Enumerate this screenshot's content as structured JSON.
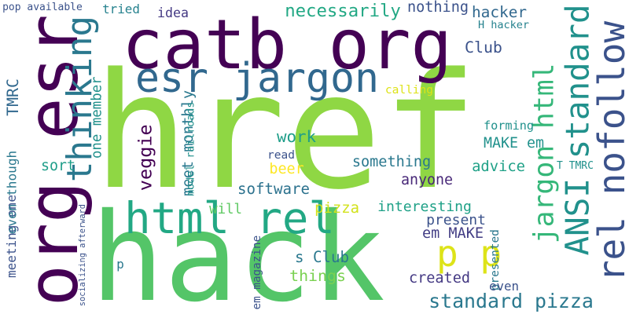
{
  "words": [
    {
      "text": "href",
      "color": "#8fd744"
    },
    {
      "text": "hack",
      "color": "#54c568"
    },
    {
      "text": "catb org",
      "color": "#440154"
    },
    {
      "text": "org esr",
      "color": "#440154"
    },
    {
      "text": "rel nofollow",
      "color": "#3b528b"
    },
    {
      "text": "esr jargon",
      "color": "#31688e"
    },
    {
      "text": "jargon html",
      "color": "#35b779"
    },
    {
      "text": "ANSI standard",
      "color": "#21918c"
    },
    {
      "text": "thinking",
      "color": "#2a788e"
    },
    {
      "text": "html rel",
      "color": "#22a884"
    },
    {
      "text": "p p",
      "color": "#dde318"
    },
    {
      "text": "standard pizza",
      "color": "#2a788e"
    },
    {
      "text": "things",
      "color": "#7ad151"
    },
    {
      "text": "presented",
      "color": "#2a788e"
    },
    {
      "text": "necessarily",
      "color": "#22a884"
    },
    {
      "text": "nothing",
      "color": "#3b528b"
    },
    {
      "text": "hacker",
      "color": "#31688e"
    },
    {
      "text": "H hacker",
      "color": "#26828e"
    },
    {
      "text": "Club",
      "color": "#3b528b"
    },
    {
      "text": "calling",
      "color": "#dde318"
    },
    {
      "text": "forming",
      "color": "#21918c"
    },
    {
      "text": "MAKE em",
      "color": "#21918c"
    },
    {
      "text": "advice",
      "color": "#1fa187"
    },
    {
      "text": "T TMRC",
      "color": "#21918c"
    },
    {
      "text": "something",
      "color": "#2a788e"
    },
    {
      "text": "anyone",
      "color": "#482878"
    },
    {
      "text": "interesting",
      "color": "#1fa187"
    },
    {
      "text": "present",
      "color": "#3b528b"
    },
    {
      "text": "em MAKE",
      "color": "#433e85"
    },
    {
      "text": "s Club",
      "color": "#2a788e"
    },
    {
      "text": "created",
      "color": "#443983"
    },
    {
      "text": "even",
      "color": "#3b528b"
    },
    {
      "text": "pizza",
      "color": "#d2e21b"
    },
    {
      "text": "software",
      "color": "#2c728e"
    },
    {
      "text": "will",
      "color": "#5ec962"
    },
    {
      "text": "beer",
      "color": "#fde725"
    },
    {
      "text": "read",
      "color": "#3b528b"
    },
    {
      "text": "work",
      "color": "#1f9e89"
    },
    {
      "text": "meet monthly",
      "color": "#2a788e"
    },
    {
      "text": "veggie",
      "color": "#440154"
    },
    {
      "text": "idea",
      "color": "#443983"
    },
    {
      "text": "tried",
      "color": "#26828e"
    },
    {
      "text": "pop available",
      "color": "#3b528b"
    },
    {
      "text": "TMRC",
      "color": "#31688e"
    },
    {
      "text": "one member",
      "color": "#21918c"
    },
    {
      "text": "sort",
      "color": "#1f9e89"
    },
    {
      "text": "meeting one",
      "color": "#3b528b"
    },
    {
      "text": "even though",
      "color": "#2a788e"
    },
    {
      "text": "socializing afterward",
      "color": "#3b528b"
    },
    {
      "text": "model railroads",
      "color": "#21918c"
    },
    {
      "text": "em magazine",
      "color": "#3b528b"
    },
    {
      "text": "p",
      "color": "#2a788e"
    }
  ]
}
